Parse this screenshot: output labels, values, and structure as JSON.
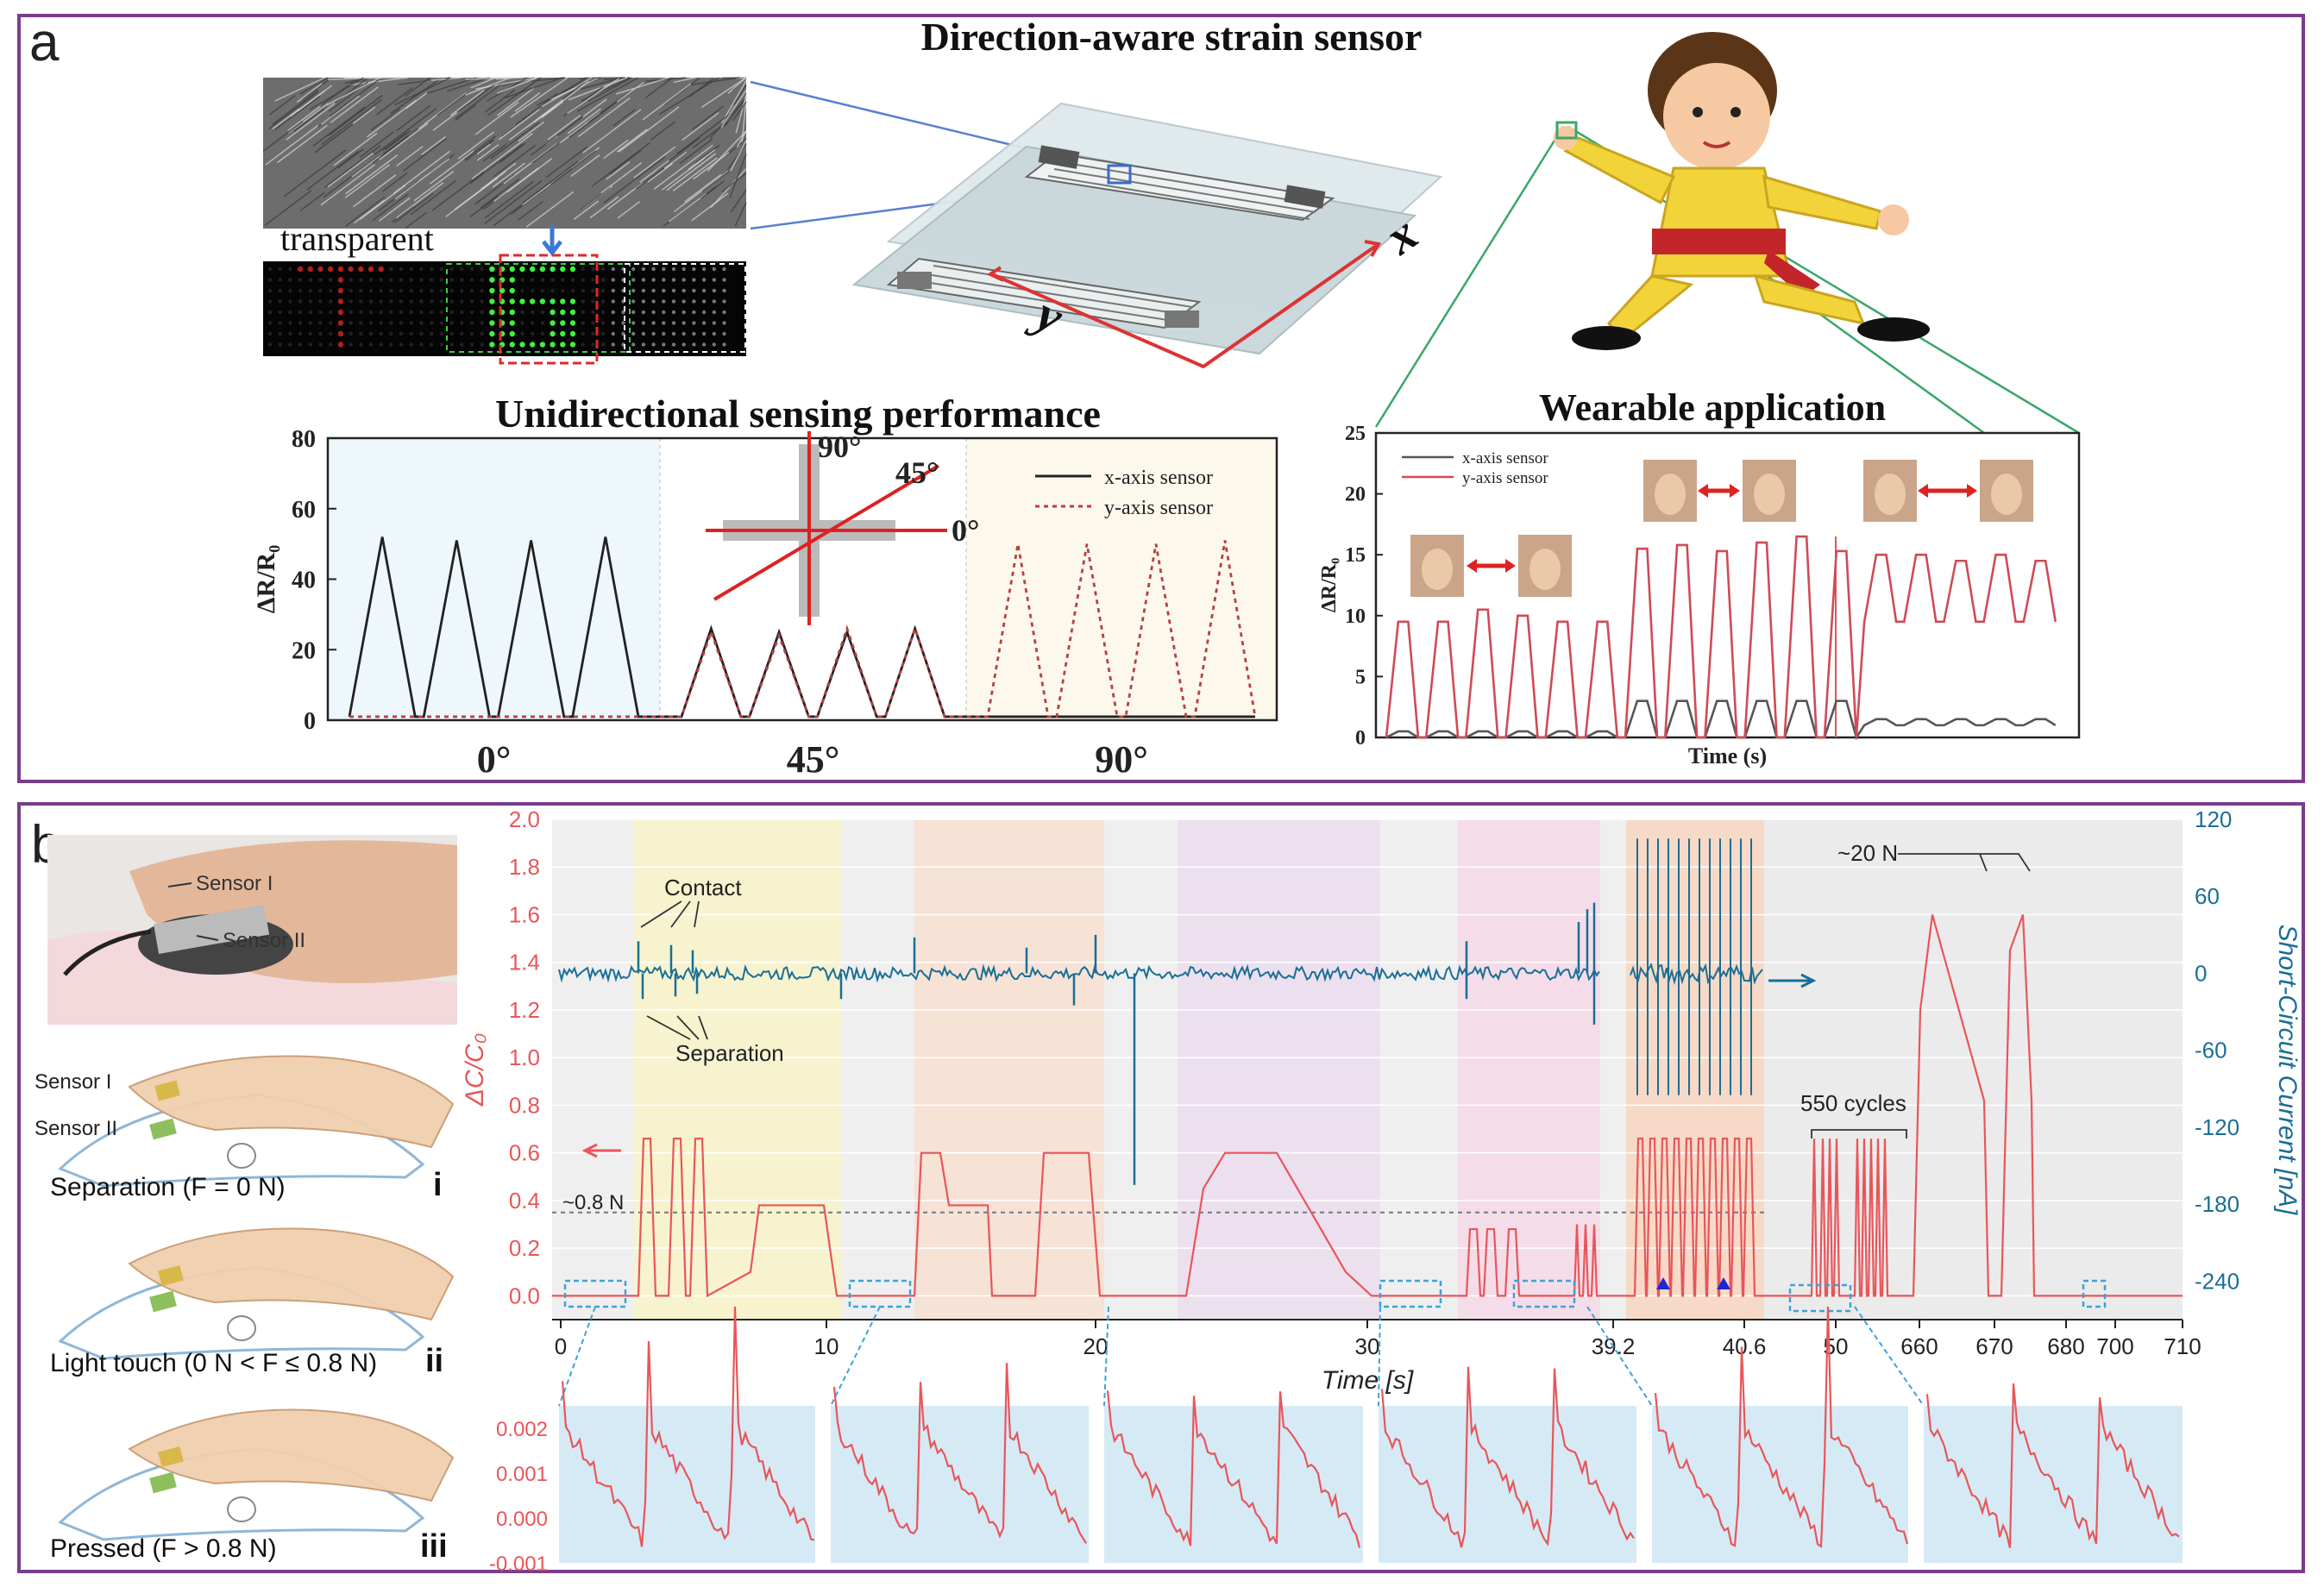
{
  "panel_a": {
    "letter": "a",
    "title": "Direction-aware strain sensor",
    "transparent_label": "transparent",
    "axis_x_letter": "x",
    "axis_y_letter": "y",
    "uni_title": "Unidirectional sensing performance",
    "wear_title": "Wearable application"
  },
  "panel_b": {
    "letter": "b",
    "photo_sensor1": "Sensor I",
    "photo_sensor2": "Sensor II",
    "hand_sensor1": "Sensor I",
    "hand_sensor2": "Sensor II",
    "state_i_label": "Separation (F = 0 N)",
    "state_i_roman": "i",
    "state_ii_label": "Light touch (0 N < F ≤ 0.8 N)",
    "state_ii_roman": "ii",
    "state_iii_label": "Pressed (F > 0.8 N)",
    "state_iii_roman": "iii",
    "contact_label": "Contact",
    "separation_label": "Separation",
    "threshold_label": "~0.8 N",
    "force_label": "~20 N",
    "cycles_label": "550 cycles"
  },
  "colors": {
    "frame": "#7a3d8c",
    "red": "#e8565a",
    "blue": "#1a6e96",
    "dark": "#222222"
  },
  "chart_data": [
    {
      "id": "unidirectional",
      "type": "line",
      "ylabel": "ΔR/R₀",
      "ylim": [
        0,
        80
      ],
      "yticks": [
        0,
        20,
        40,
        60,
        80
      ],
      "region_labels": [
        "0°",
        "45°",
        "90°"
      ],
      "inset_angles": [
        "90°",
        "45°",
        "0°"
      ],
      "series": [
        {
          "name": "x-axis sensor",
          "style": "solid",
          "peaks_by_region": [
            [
              52,
              51,
              51,
              52
            ],
            [
              26,
              25,
              25,
              26
            ],
            [
              1,
              1,
              1,
              1
            ]
          ]
        },
        {
          "name": "y-axis sensor",
          "style": "dotted",
          "peaks_by_region": [
            [
              1,
              1,
              1,
              1
            ],
            [
              25,
              24,
              26,
              26
            ],
            [
              50,
              50,
              50,
              51
            ]
          ]
        }
      ]
    },
    {
      "id": "wearable",
      "type": "line",
      "xlabel": "Time (s)",
      "ylabel": "ΔR/R₀",
      "ylim": [
        0,
        25
      ],
      "yticks": [
        0,
        5,
        10,
        15,
        20,
        25
      ],
      "series": [
        {
          "name": "x-axis sensor",
          "peaks": [
            0.5,
            0.5,
            0.5,
            0.5,
            0.5,
            0.5,
            3,
            3,
            3,
            3,
            3,
            3,
            1.5,
            1.5,
            1.5,
            1.5,
            1.5
          ]
        },
        {
          "name": "y-axis sensor",
          "peaks": [
            9.5,
            9.5,
            10.5,
            10,
            9.5,
            9.5,
            15.5,
            15.8,
            15.3,
            16,
            16.5,
            15.3,
            15,
            15,
            14.5,
            15,
            14.5
          ]
        }
      ]
    },
    {
      "id": "capacitance_current",
      "type": "line",
      "xlabel": "Time [s]",
      "y1label": "ΔC/C₀",
      "y2label": "Short-Circuit Current [nA]",
      "y1lim": [
        -0.1,
        2.0
      ],
      "y1ticks": [
        0.0,
        0.2,
        0.4,
        0.6,
        0.8,
        1.0,
        1.2,
        1.4,
        1.6,
        1.8,
        2.0
      ],
      "y2lim": [
        -270,
        120
      ],
      "y2ticks": [
        -240,
        -180,
        -120,
        -60,
        0,
        60,
        120
      ],
      "xticks": [
        "0",
        "10",
        "20",
        "30",
        "39.2",
        "40.6",
        "50",
        "660",
        "670",
        "680",
        "700",
        "710"
      ],
      "threshold": 0.35,
      "plateaus": [
        0.38,
        0.38,
        0.6,
        0.82,
        0.82
      ]
    },
    {
      "id": "zoom_insets",
      "type": "line",
      "ylim": [
        -0.001,
        0.0025
      ],
      "yticks": [
        "0.002",
        "0.001",
        "0.000",
        "-0.001"
      ],
      "panels": 6
    }
  ]
}
